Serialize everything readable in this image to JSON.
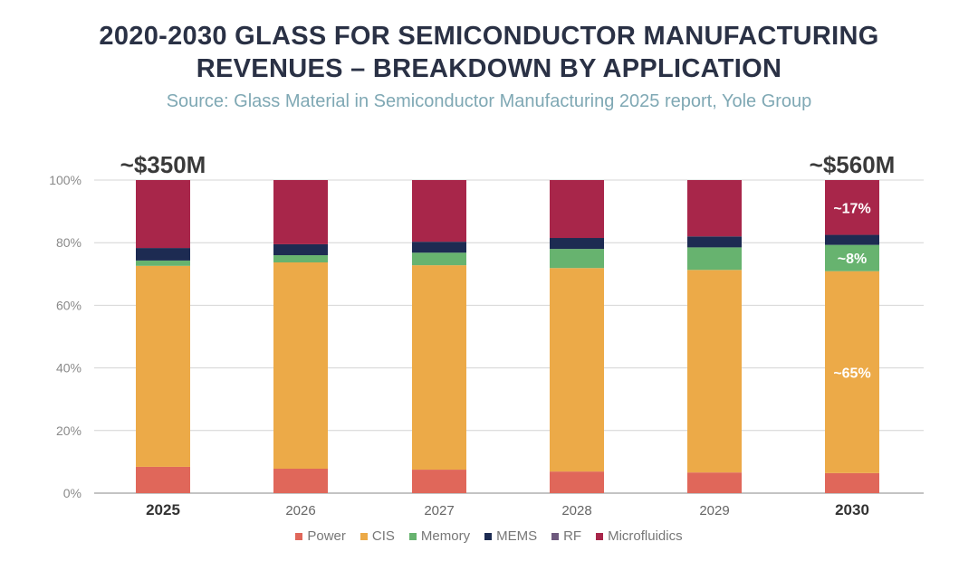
{
  "chart_data": {
    "type": "bar",
    "stacked": true,
    "title": "2020-2030 GLASS FOR SEMICONDUCTOR MANUFACTURING REVENUES – BREAKDOWN BY APPLICATION",
    "title_lines": [
      "2020-2030 GLASS FOR SEMICONDUCTOR MANUFACTURING",
      "REVENUES – BREAKDOWN BY APPLICATION"
    ],
    "subtitle": "Source: Glass Material in Semiconductor Manufacturing 2025 report, Yole Group",
    "xlabel": "",
    "ylabel": "",
    "ylim": [
      0,
      100
    ],
    "yticks": [
      "0%",
      "20%",
      "40%",
      "60%",
      "80%",
      "100%"
    ],
    "ytick_values": [
      0,
      20,
      40,
      60,
      80,
      100
    ],
    "grid": true,
    "legend_position": "bottom",
    "categories": [
      "2025",
      "2026",
      "2027",
      "2028",
      "2029",
      "2030"
    ],
    "bold_categories": [
      "2025",
      "2030"
    ],
    "series": [
      {
        "name": "Power",
        "color": "#e0675a",
        "values": [
          8.4,
          7.8,
          7.5,
          6.9,
          6.6,
          6.4
        ]
      },
      {
        "name": "CIS",
        "color": "#ecaa48",
        "values": [
          64.2,
          65.9,
          65.3,
          65.0,
          64.7,
          64.5
        ]
      },
      {
        "name": "Memory",
        "color": "#67b36f",
        "values": [
          1.7,
          2.3,
          4.0,
          6.1,
          7.2,
          8.4
        ]
      },
      {
        "name": "MEMS",
        "color": "#1d2b52",
        "values": [
          4.0,
          3.5,
          3.5,
          3.5,
          3.5,
          3.2
        ]
      },
      {
        "name": "RF",
        "color": "#6e5a7e",
        "values": [
          0,
          0,
          0,
          0,
          0,
          0
        ]
      },
      {
        "name": "Microfluidics",
        "color": "#a8264a",
        "values": [
          21.7,
          20.5,
          19.7,
          18.5,
          18.0,
          17.5
        ]
      }
    ],
    "annotations": [
      {
        "text": "~$350M",
        "category": "2025",
        "position": "above-bar"
      },
      {
        "text": "~$560M",
        "category": "2030",
        "position": "above-bar"
      },
      {
        "text": "~17%",
        "category": "2030",
        "series": "Microfluidics"
      },
      {
        "text": "~8%",
        "category": "2030",
        "series": "Memory"
      },
      {
        "text": "~65%",
        "category": "2030",
        "series": "CIS"
      }
    ]
  }
}
